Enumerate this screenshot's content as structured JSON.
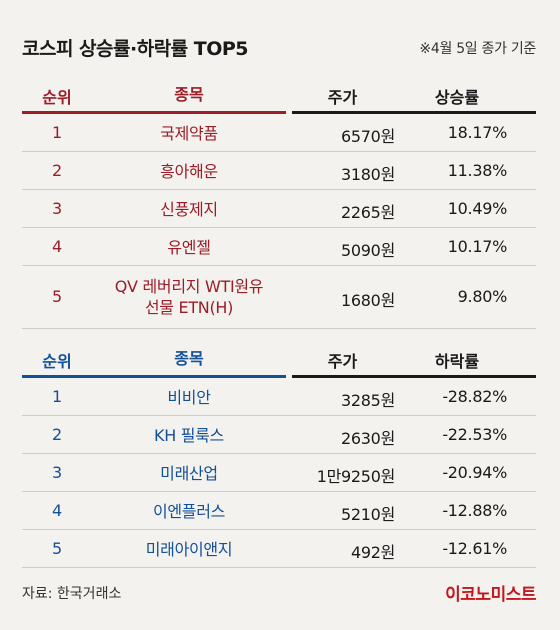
{
  "title": "코스피 상승률·하락률 TOP5",
  "note": "※4월 5일 종가 기준",
  "chart_data": [
    {
      "type": "table",
      "headers": [
        "순위",
        "종목",
        "주가",
        "상승률"
      ],
      "rows": [
        {
          "rank": "1",
          "name": "국제약품",
          "price": "6570원",
          "rate": "18.17%"
        },
        {
          "rank": "2",
          "name": "흥아해운",
          "price": "3180원",
          "rate": "11.38%"
        },
        {
          "rank": "3",
          "name": "신풍제지",
          "price": "2265원",
          "rate": "10.49%"
        },
        {
          "rank": "4",
          "name": "유엔젤",
          "price": "5090원",
          "rate": "10.17%"
        },
        {
          "rank": "5",
          "name": "QV 레버리지 WTI원유\n선물 ETN(H)",
          "price": "1680원",
          "rate": "9.80%"
        }
      ]
    },
    {
      "type": "table",
      "headers": [
        "순위",
        "종목",
        "주가",
        "하락률"
      ],
      "rows": [
        {
          "rank": "1",
          "name": "비비안",
          "price": "3285원",
          "rate": "-28.82%"
        },
        {
          "rank": "2",
          "name": "KH 필룩스",
          "price": "2630원",
          "rate": "-22.53%"
        },
        {
          "rank": "3",
          "name": "미래산업",
          "price": "1만9250원",
          "rate": "-20.94%"
        },
        {
          "rank": "4",
          "name": "이엔플러스",
          "price": "5210원",
          "rate": "-12.88%"
        },
        {
          "rank": "5",
          "name": "미래아이앤지",
          "price": "492원",
          "rate": "-12.61%"
        }
      ]
    }
  ],
  "source": "자료: 한국거래소",
  "brand": "이코노미스트",
  "colors": {
    "gain": "#9b1d28",
    "loss": "#13509a"
  }
}
